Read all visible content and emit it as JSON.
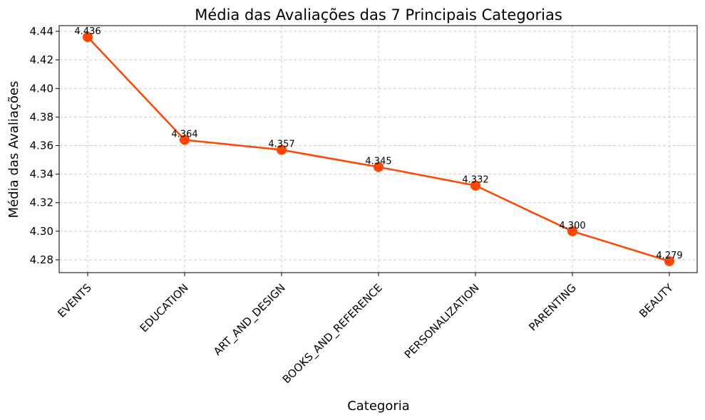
{
  "chart_data": {
    "type": "line",
    "title": "Média das Avaliações das 7 Principais Categorias",
    "xlabel": "Categoria",
    "ylabel": "Média das Avaliações",
    "categories": [
      "EVENTS",
      "EDUCATION",
      "ART_AND_DESIGN",
      "BOOKS_AND_REFERENCE",
      "PERSONALIZATION",
      "PARENTING",
      "BEAUTY"
    ],
    "series": [
      {
        "values": [
          4.436,
          4.364,
          4.357,
          4.345,
          4.332,
          4.3,
          4.279
        ],
        "labels": [
          "4.436",
          "4.364",
          "4.357",
          "4.345",
          "4.332",
          "4.300",
          "4.279"
        ],
        "color": "#FF4500"
      }
    ],
    "ylim": [
      4.271,
      4.444
    ],
    "yticks": [
      "4.28",
      "4.30",
      "4.32",
      "4.34",
      "4.36",
      "4.38",
      "4.40",
      "4.42",
      "4.44"
    ],
    "grid": true,
    "grid_color": "#cccccc",
    "legend": false
  }
}
